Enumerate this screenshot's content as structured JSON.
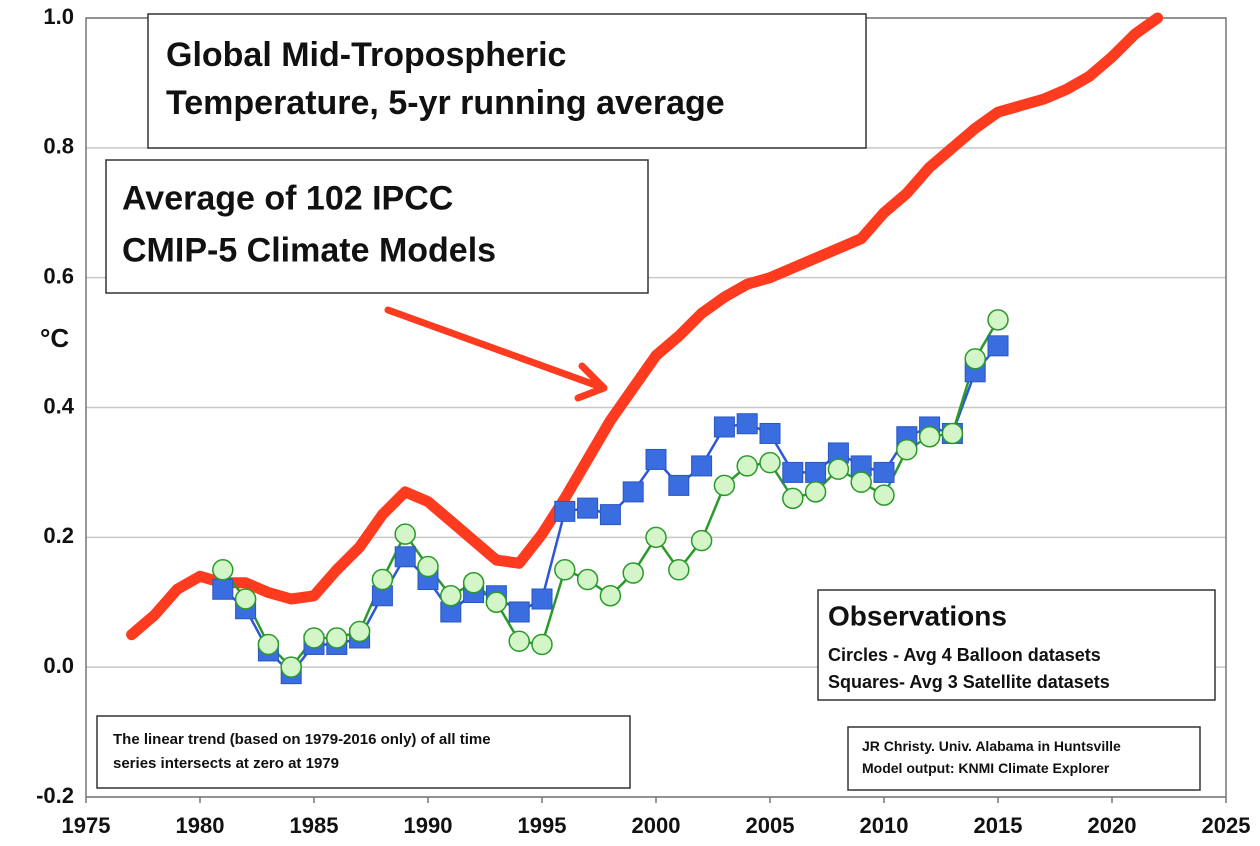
{
  "chart_data": {
    "type": "line",
    "y_label": "°C",
    "x": [
      1977,
      1978,
      1979,
      1980,
      1981,
      1982,
      1983,
      1984,
      1985,
      1986,
      1987,
      1988,
      1989,
      1990,
      1991,
      1992,
      1993,
      1994,
      1995,
      1996,
      1997,
      1998,
      1999,
      2000,
      2001,
      2002,
      2003,
      2004,
      2005,
      2006,
      2007,
      2008,
      2009,
      2010,
      2011,
      2012,
      2013,
      2014,
      2015,
      2016,
      2017,
      2018,
      2019,
      2020,
      2021,
      2022
    ],
    "series": [
      {
        "name": "Average of 102 IPCC CMIP-5 Climate Models",
        "color": "#ff3b1f",
        "marker": "none",
        "values": [
          0.05,
          0.08,
          0.12,
          0.14,
          0.13,
          0.13,
          0.115,
          0.105,
          0.11,
          0.15,
          0.185,
          0.235,
          0.27,
          0.255,
          0.225,
          0.195,
          0.165,
          0.16,
          0.205,
          0.26,
          0.32,
          0.38,
          0.43,
          0.48,
          0.51,
          0.545,
          0.57,
          0.59,
          0.6,
          0.615,
          0.63,
          0.645,
          0.66,
          0.7,
          0.73,
          0.77,
          0.8,
          0.83,
          0.855,
          0.865,
          0.875,
          0.89,
          0.91,
          0.94,
          0.975,
          1.0
        ]
      },
      {
        "name": "Squares- Avg 3 Satellite datasets",
        "color": "#3a6ee0",
        "marker": "square",
        "values": [
          null,
          null,
          null,
          null,
          0.12,
          0.09,
          0.025,
          -0.01,
          0.035,
          0.035,
          0.045,
          0.11,
          0.17,
          0.135,
          0.085,
          0.115,
          0.11,
          0.085,
          0.105,
          0.24,
          0.245,
          0.235,
          0.27,
          0.32,
          0.28,
          0.31,
          0.37,
          0.375,
          0.36,
          0.3,
          0.3,
          0.33,
          0.31,
          0.3,
          0.355,
          0.37,
          0.36,
          0.455,
          0.495,
          null,
          null,
          null,
          null,
          null,
          null,
          null
        ]
      },
      {
        "name": "Circles - Avg 4 Balloon datasets",
        "color": "#2a9a2a",
        "marker": "circle",
        "values": [
          null,
          null,
          null,
          null,
          0.15,
          0.105,
          0.035,
          0.0,
          0.045,
          0.045,
          0.055,
          0.135,
          0.205,
          0.155,
          0.11,
          0.13,
          0.1,
          0.04,
          0.035,
          0.15,
          0.135,
          0.11,
          0.145,
          0.2,
          0.15,
          0.195,
          0.28,
          0.31,
          0.315,
          0.26,
          0.27,
          0.305,
          0.285,
          0.265,
          0.335,
          0.355,
          0.36,
          0.475,
          0.535,
          null,
          null,
          null,
          null,
          null,
          null,
          null
        ]
      }
    ],
    "annotations": [
      {
        "lines": [
          "Global Mid-Tropospheric",
          "Temperature, 5-yr running average"
        ]
      },
      {
        "lines": [
          "Average of 102 IPCC",
          "CMIP-5 Climate Models"
        ]
      },
      {
        "lines": [
          "Observations",
          "Circles - Avg 4 Balloon datasets",
          "Squares- Avg 3 Satellite datasets"
        ]
      },
      {
        "lines": [
          "The linear trend (based on 1979-2016 only) of all time",
          "series intersects at zero at 1979"
        ]
      },
      {
        "lines": [
          "JR Christy. Univ. Alabama in Huntsville",
          "Model output: KNMI Climate Explorer"
        ]
      }
    ],
    "xlim": [
      1975,
      2025
    ],
    "xticks": [
      1975,
      1980,
      1985,
      1990,
      1995,
      2000,
      2005,
      2010,
      2015,
      2020,
      2025
    ],
    "ylim": [
      -0.2,
      1.0
    ],
    "yticks": [
      {
        "value": -0.2,
        "label": "-0.2"
      },
      {
        "value": 0,
        "label": "0.0"
      },
      0.2,
      0.4,
      0.6,
      0.8,
      {
        "value": 1,
        "label": "1.0"
      }
    ],
    "grid": true
  }
}
